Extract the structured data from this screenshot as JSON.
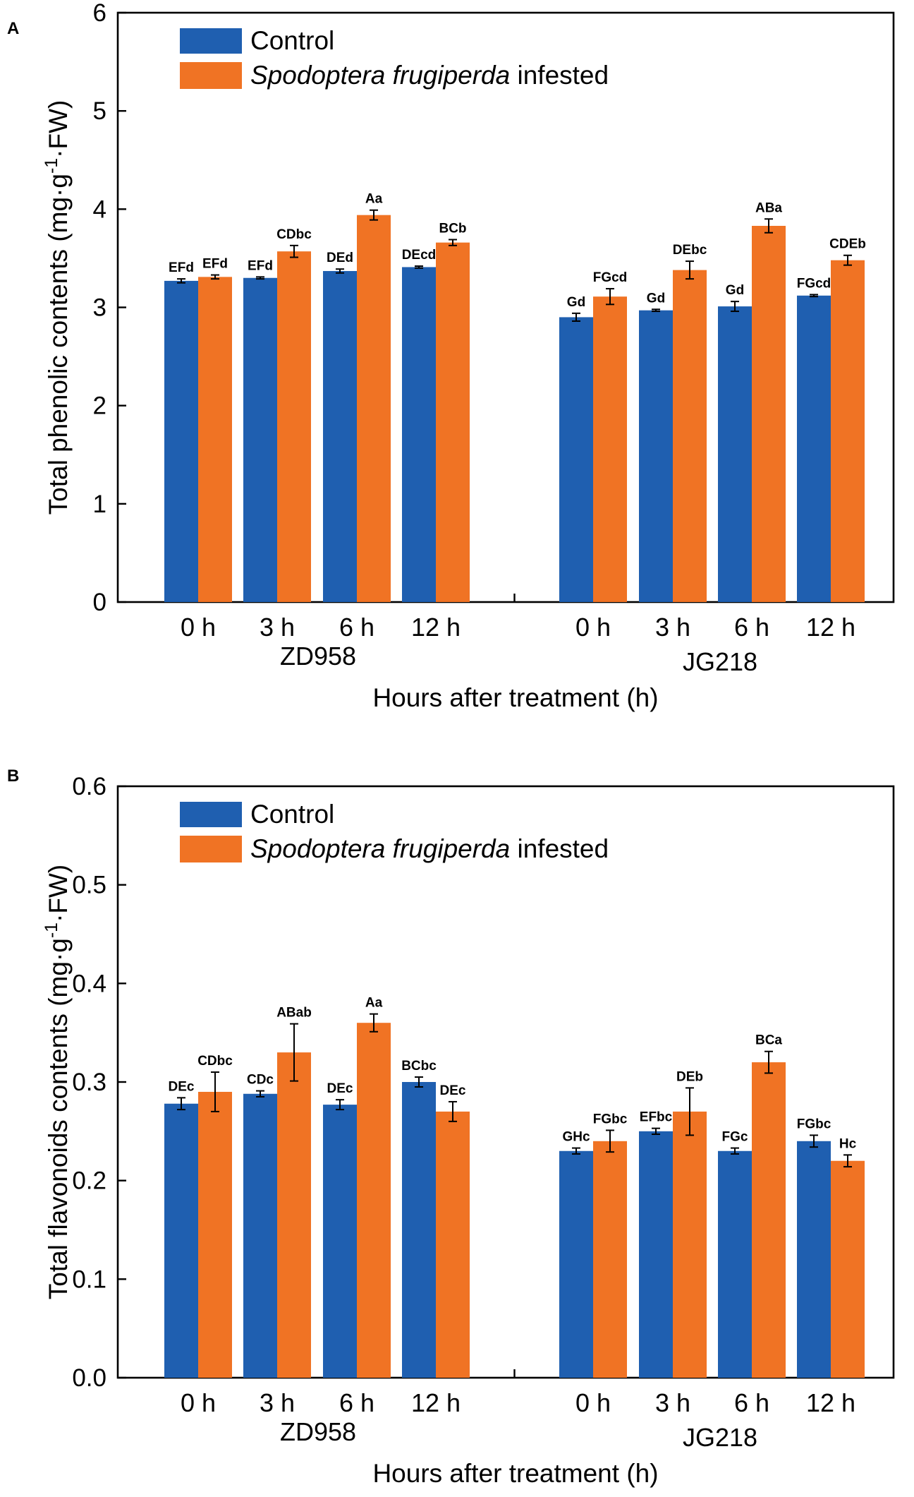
{
  "chart_data": [
    {
      "type": "bar",
      "panel_label": "A",
      "ylabel": "Total phenolic contents (mg·g-1·FW)",
      "ylabel_parts": {
        "before": "Total phenolic contents (mg·g",
        "sup": "-1",
        "after": "·FW)"
      },
      "xlabel": "Hours after treatment (h)",
      "ylim": [
        0,
        6
      ],
      "yticks": [
        "0",
        "1",
        "2",
        "3",
        "4",
        "5",
        "6"
      ],
      "groups": [
        {
          "name": "ZD958",
          "categories": [
            "0 h",
            "3 h",
            "6 h",
            "12 h"
          ]
        },
        {
          "name": "JG218",
          "categories": [
            "0 h",
            "3 h",
            "6 h",
            "12 h"
          ]
        }
      ],
      "legend": {
        "control": "Control",
        "infested_italic": "Spodoptera frugiperda",
        "infested_rest": " infested"
      },
      "colors": {
        "control": "#1f5fb0",
        "infested": "#f07324"
      },
      "series": [
        {
          "name": "Control",
          "values": [
            3.27,
            3.3,
            3.37,
            3.41,
            2.9,
            2.97,
            3.01,
            3.12
          ],
          "errors": [
            0.02,
            0.01,
            0.02,
            0.01,
            0.04,
            0.01,
            0.05,
            0.01
          ],
          "labels": [
            "EFd",
            "EFd",
            "DEd",
            "DEcd",
            "Gd",
            "Gd",
            "Gd",
            "FGcd"
          ]
        },
        {
          "name": "Spodoptera frugiperda infested",
          "values": [
            3.31,
            3.57,
            3.94,
            3.66,
            3.11,
            3.38,
            3.83,
            3.48
          ],
          "errors": [
            0.02,
            0.06,
            0.05,
            0.03,
            0.08,
            0.09,
            0.07,
            0.05
          ],
          "labels": [
            "EFd",
            "CDbc",
            "Aa",
            "BCb",
            "FGcd",
            "DEbc",
            "ABa",
            "CDEb"
          ]
        }
      ]
    },
    {
      "type": "bar",
      "panel_label": "B",
      "ylabel": "Total flavonoids contents (mg·g-1·FW)",
      "ylabel_parts": {
        "before": "Total flavonoids contents (mg·g",
        "sup": "-1",
        "after": "·FW)"
      },
      "xlabel": "Hours after treatment (h)",
      "ylim": [
        0,
        0.6
      ],
      "yticks": [
        "0.0",
        "0.1",
        "0.2",
        "0.3",
        "0.4",
        "0.5",
        "0.6"
      ],
      "groups": [
        {
          "name": "ZD958",
          "categories": [
            "0 h",
            "3 h",
            "6 h",
            "12 h"
          ]
        },
        {
          "name": "JG218",
          "categories": [
            "0 h",
            "3 h",
            "6 h",
            "12 h"
          ]
        }
      ],
      "legend": {
        "control": "Control",
        "infested_italic": "Spodoptera frugiperda",
        "infested_rest": " infested"
      },
      "colors": {
        "control": "#1f5fb0",
        "infested": "#f07324"
      },
      "series": [
        {
          "name": "Control",
          "values": [
            0.278,
            0.288,
            0.277,
            0.3,
            0.23,
            0.25,
            0.23,
            0.24
          ],
          "errors": [
            0.006,
            0.003,
            0.005,
            0.005,
            0.003,
            0.003,
            0.003,
            0.006
          ],
          "labels": [
            "DEc",
            "CDc",
            "DEc",
            "BCbc",
            "GHc",
            "EFbc",
            "FGc",
            "FGbc"
          ]
        },
        {
          "name": "Spodoptera frugiperda infested",
          "values": [
            0.29,
            0.33,
            0.36,
            0.27,
            0.24,
            0.27,
            0.32,
            0.22
          ],
          "errors": [
            0.02,
            0.029,
            0.009,
            0.01,
            0.011,
            0.024,
            0.011,
            0.006
          ],
          "labels": [
            "CDbc",
            "ABab",
            "Aa",
            "DEc",
            "FGbc",
            "DEb",
            "BCa",
            "Hc"
          ]
        }
      ]
    }
  ]
}
